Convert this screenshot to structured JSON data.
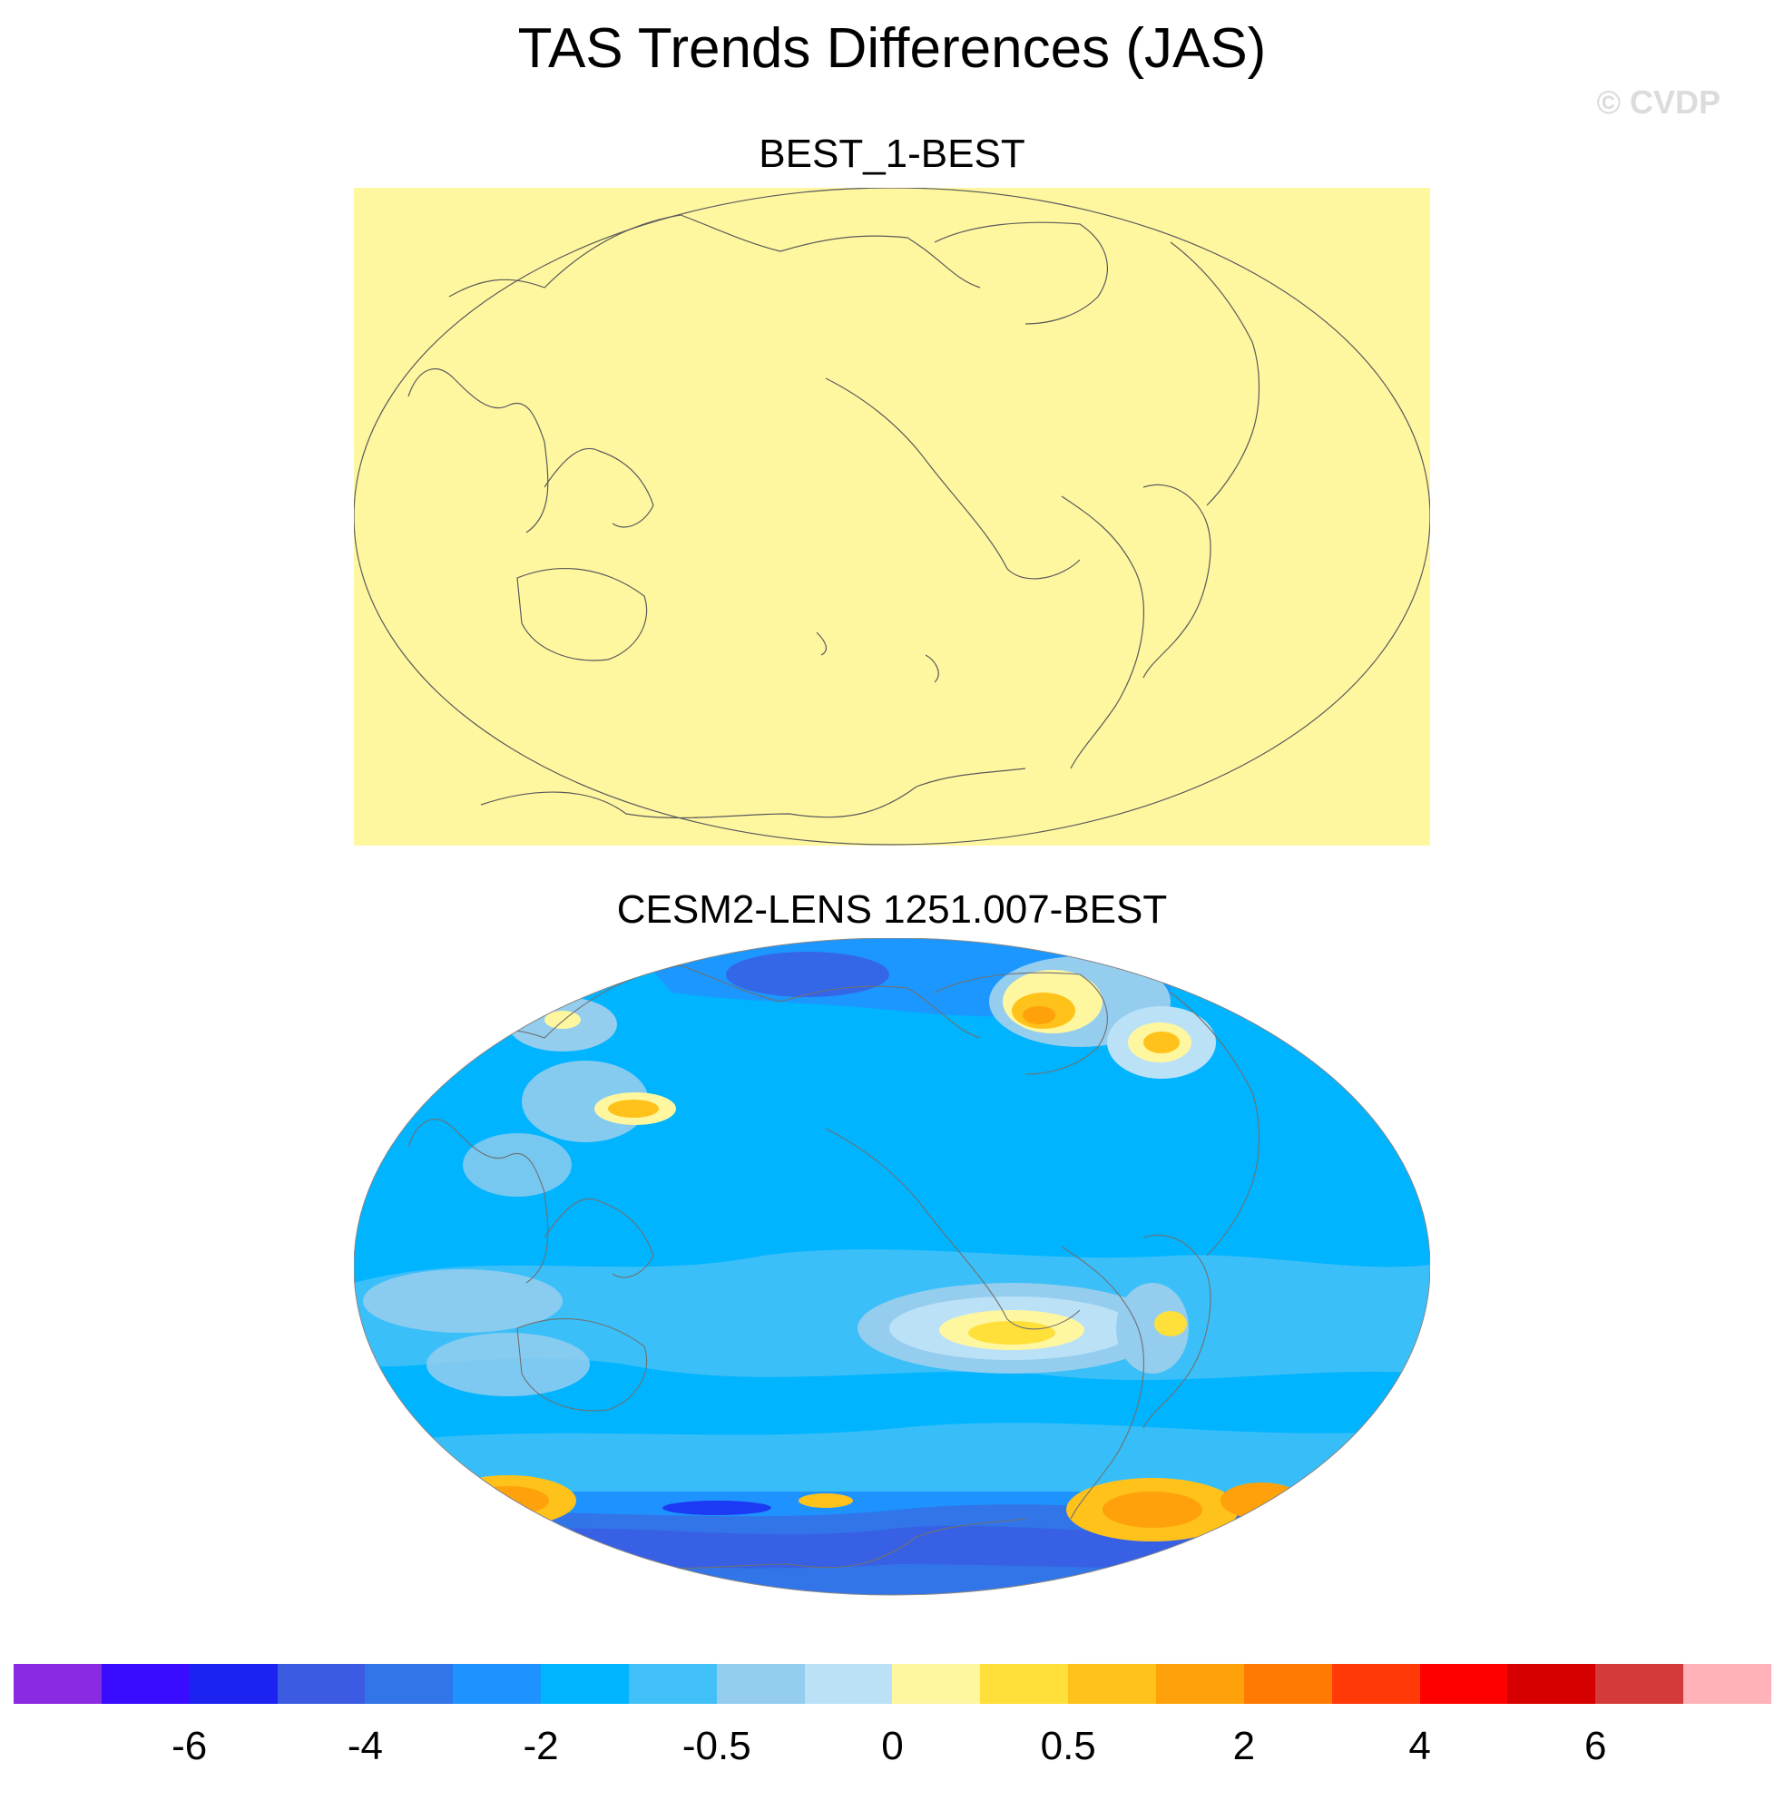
{
  "title": "TAS Trends Differences (JAS)",
  "watermark": "© CVDP",
  "panels": [
    {
      "label": "BEST_1-BEST"
    },
    {
      "label": "CESM2-LENS 1251.007-BEST"
    }
  ],
  "colorbar": {
    "colors": [
      "#8a2be2",
      "#3a0cff",
      "#1c23f0",
      "#3b5be2",
      "#3175e8",
      "#1e93ff",
      "#00b4ff",
      "#41c0f7",
      "#94cdee",
      "#bbe1f7",
      "#fff7a0",
      "#ffdf3a",
      "#ffc21a",
      "#ffa10a",
      "#ff7a00",
      "#ff3a08",
      "#ff0000",
      "#d60000",
      "#d53a3a",
      "#ffb3b8"
    ],
    "tick_labels": [
      {
        "value": "-6",
        "after_segment": 2
      },
      {
        "value": "-4",
        "after_segment": 4
      },
      {
        "value": "-2",
        "after_segment": 6
      },
      {
        "value": "-0.5",
        "after_segment": 8
      },
      {
        "value": "0",
        "after_segment": 10
      },
      {
        "value": "0.5",
        "after_segment": 12
      },
      {
        "value": "2",
        "after_segment": 14
      },
      {
        "value": "4",
        "after_segment": 16
      },
      {
        "value": "6",
        "after_segment": 18
      }
    ]
  }
}
